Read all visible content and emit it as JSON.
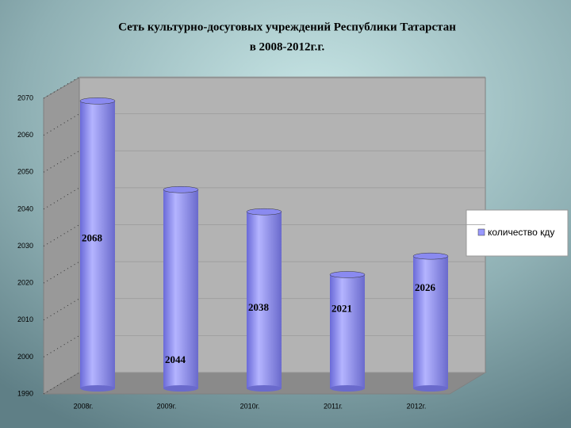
{
  "chart_data": {
    "type": "bar",
    "title": [
      "Сеть культурно-досуговых учреждений Республики Татарстан",
      "в 2008-2012г.г."
    ],
    "categories": [
      "2008г.",
      "2009г.",
      "2010г.",
      "2011г.",
      "2012г."
    ],
    "series": [
      {
        "name": "количество кду",
        "color": "#9999ff",
        "values": [
          2068,
          2044,
          2038,
          2021,
          2026
        ]
      }
    ],
    "ylim": [
      1990,
      2070
    ],
    "yticks": [
      1990,
      2000,
      2010,
      2020,
      2030,
      2040,
      2050,
      2060,
      2070
    ],
    "grid": true,
    "legend": "right"
  }
}
